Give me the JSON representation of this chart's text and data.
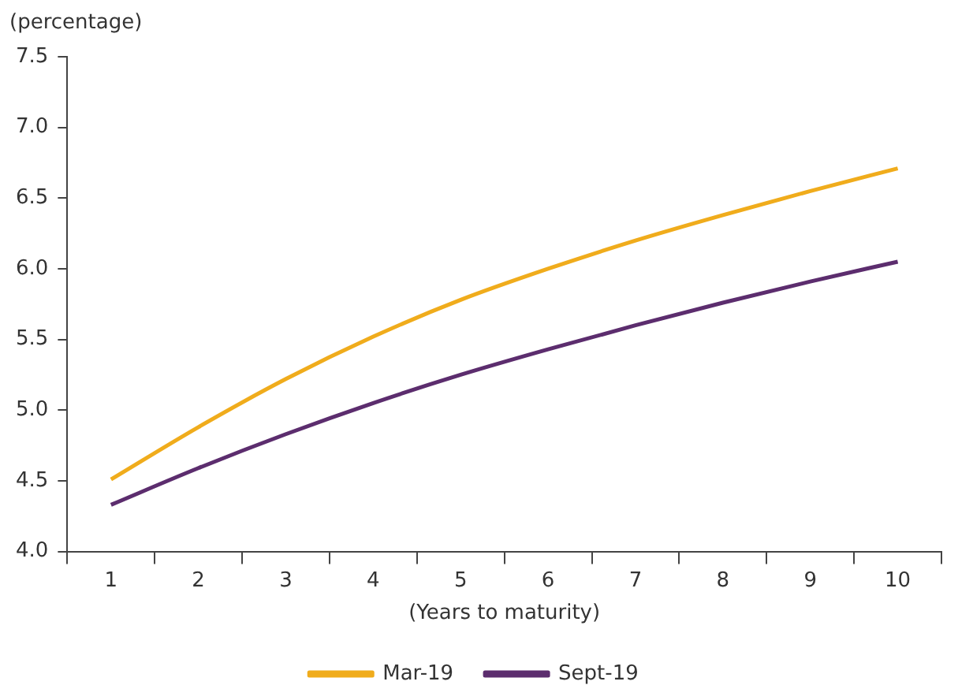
{
  "chart_data": {
    "type": "line",
    "ylabel": "(percentage)",
    "xlabel": "(Years to maturity)",
    "categories": [
      "1",
      "2",
      "3",
      "4",
      "5",
      "6",
      "7",
      "8",
      "9",
      "10"
    ],
    "series": [
      {
        "name": "Mar-19",
        "color": "#f0ac1c",
        "values": [
          4.51,
          4.88,
          5.22,
          5.52,
          5.78,
          6.0,
          6.2,
          6.38,
          6.55,
          6.71
        ]
      },
      {
        "name": "Sept-19",
        "color": "#5c2d6e",
        "values": [
          4.33,
          4.59,
          4.83,
          5.05,
          5.25,
          5.43,
          5.6,
          5.76,
          5.91,
          6.05
        ]
      }
    ],
    "ylim": [
      4,
      7.5
    ],
    "yticks": [
      {
        "value": 4,
        "label": "4.0"
      },
      {
        "value": 4.5,
        "label": "4.5"
      },
      {
        "value": 5,
        "label": "5.0"
      },
      {
        "value": 5.5,
        "label": "5.5"
      },
      {
        "value": 6,
        "label": "6.0"
      },
      {
        "value": 6.5,
        "label": "6.5"
      },
      {
        "value": 7,
        "label": "7.0"
      },
      {
        "value": 7.5,
        "label": "7.5"
      }
    ],
    "grid": false,
    "legend": "bottom",
    "marker": "none",
    "line_style": "solid"
  }
}
